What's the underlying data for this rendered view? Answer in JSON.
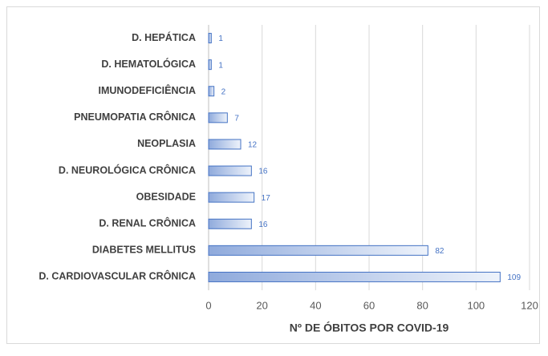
{
  "chart_data": {
    "type": "bar",
    "orientation": "horizontal",
    "xlabel": "Nº DE ÓBITOS POR COVID-19",
    "categories": [
      "D. HEPÁTICA",
      "D. HEMATOLÓGICA",
      "IMUNODEFICIÊNCIA",
      "PNEUMOPATIA CRÔNICA",
      "NEOPLASIA",
      "D. NEUROLÓGICA CRÔNICA",
      "OBESIDADE",
      "D. RENAL CRÔNICA",
      "DIABETES MELLITUS",
      "D. CARDIOVASCULAR CRÔNICA"
    ],
    "values": [
      1,
      1,
      2,
      7,
      12,
      16,
      17,
      16,
      82,
      109
    ],
    "color": "#4472c4",
    "xlim": [
      0,
      120
    ],
    "xticks": [
      0,
      20,
      40,
      60,
      80,
      100,
      120
    ],
    "grid": true
  }
}
